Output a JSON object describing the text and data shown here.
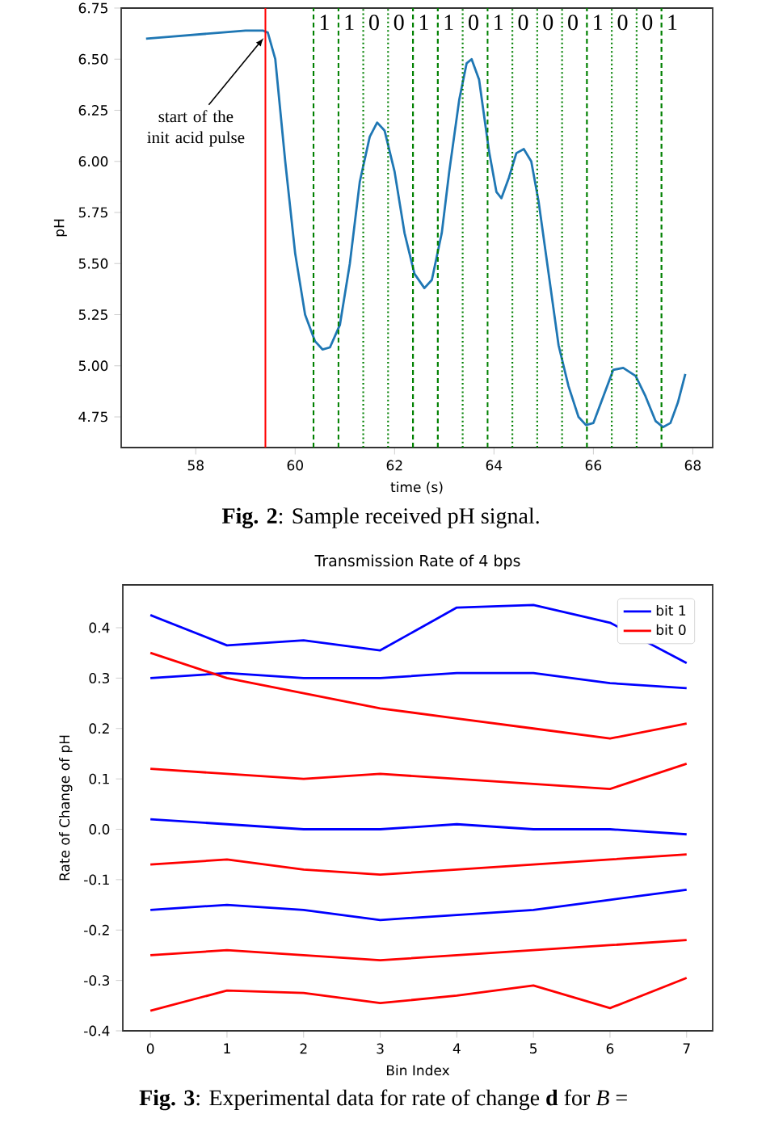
{
  "chart_data": [
    {
      "type": "line",
      "xlabel": "time (s)",
      "ylabel": "pH",
      "xlim": [
        56.5,
        68.4
      ],
      "ylim": [
        4.6,
        6.75
      ],
      "xticks": [
        58,
        60,
        62,
        64,
        66,
        68
      ],
      "yticks": [
        4.75,
        {
          "value": 5,
          "label": "5.00"
        },
        5.25,
        {
          "value": 5.5,
          "label": "5.50"
        },
        5.75,
        {
          "value": 6,
          "label": "6.00"
        },
        6.25,
        {
          "value": 6.5,
          "label": "6.50"
        },
        6.75
      ],
      "series": [
        {
          "color": "#1f77b4",
          "x": [
            57.0,
            57.5,
            58.0,
            58.5,
            59.0,
            59.35,
            59.45,
            59.6,
            59.8,
            60.0,
            60.2,
            60.4,
            60.55,
            60.7,
            60.9,
            61.1,
            61.3,
            61.5,
            61.65,
            61.8,
            62.0,
            62.2,
            62.4,
            62.6,
            62.75,
            62.95,
            63.1,
            63.3,
            63.45,
            63.55,
            63.7,
            63.9,
            64.05,
            64.15,
            64.3,
            64.45,
            64.6,
            64.75,
            64.9,
            65.1,
            65.3,
            65.5,
            65.7,
            65.85,
            66.0,
            66.2,
            66.4,
            66.6,
            66.85,
            67.05,
            67.25,
            67.4,
            67.55,
            67.7,
            67.85
          ],
          "values": [
            6.6,
            6.61,
            6.62,
            6.63,
            6.64,
            6.64,
            6.63,
            6.5,
            6.0,
            5.55,
            5.25,
            5.12,
            5.08,
            5.09,
            5.2,
            5.5,
            5.9,
            6.12,
            6.19,
            6.15,
            5.95,
            5.65,
            5.45,
            5.38,
            5.42,
            5.65,
            5.95,
            6.3,
            6.48,
            6.5,
            6.4,
            6.05,
            5.85,
            5.82,
            5.92,
            6.04,
            6.06,
            6.0,
            5.8,
            5.45,
            5.1,
            4.9,
            4.75,
            4.71,
            4.72,
            4.85,
            4.98,
            4.99,
            4.95,
            4.85,
            4.73,
            4.7,
            4.72,
            4.82,
            4.96
          ]
        }
      ],
      "ref_lines": [
        {
          "axis": "x",
          "value": 59.4,
          "color": "#ff0000",
          "line_style": "solid",
          "label": null
        },
        {
          "axis": "x",
          "value": 60.37,
          "color": "#008000",
          "line_style": "dashed"
        },
        {
          "axis": "x",
          "value": 60.87,
          "color": "#008000",
          "line_style": "dashed"
        },
        {
          "axis": "x",
          "value": 61.37,
          "color": "#008000",
          "line_style": "dotted"
        },
        {
          "axis": "x",
          "value": 61.87,
          "color": "#008000",
          "line_style": "dotted"
        },
        {
          "axis": "x",
          "value": 62.37,
          "color": "#008000",
          "line_style": "dashed"
        },
        {
          "axis": "x",
          "value": 62.87,
          "color": "#008000",
          "line_style": "dashed"
        },
        {
          "axis": "x",
          "value": 63.37,
          "color": "#008000",
          "line_style": "dotted"
        },
        {
          "axis": "x",
          "value": 63.87,
          "color": "#008000",
          "line_style": "dashed"
        },
        {
          "axis": "x",
          "value": 64.37,
          "color": "#008000",
          "line_style": "dotted"
        },
        {
          "axis": "x",
          "value": 64.87,
          "color": "#008000",
          "line_style": "dotted"
        },
        {
          "axis": "x",
          "value": 65.37,
          "color": "#008000",
          "line_style": "dotted"
        },
        {
          "axis": "x",
          "value": 65.87,
          "color": "#008000",
          "line_style": "dashed"
        },
        {
          "axis": "x",
          "value": 66.37,
          "color": "#008000",
          "line_style": "dotted"
        },
        {
          "axis": "x",
          "value": 66.87,
          "color": "#008000",
          "line_style": "dotted"
        },
        {
          "axis": "x",
          "value": 67.37,
          "color": "#008000",
          "line_style": "dashed"
        }
      ],
      "annotations": [
        {
          "text": "start of the init acid pulse",
          "x": 59.4,
          "y": 6.62
        },
        "1",
        "1",
        "0",
        "0",
        "1",
        "1",
        "0",
        "1",
        "0",
        "0",
        "0",
        "1",
        "0",
        "0",
        "1",
        "**Fig. 2**:  Sample received pH signal."
      ]
    },
    {
      "type": "line",
      "title": "Transmission Rate of 4 bps",
      "xlabel": "Bin Index",
      "ylabel": "Rate of Change of pH",
      "x": [
        0,
        1,
        2,
        3,
        4,
        5,
        6,
        7
      ],
      "xlim": [
        -0.36,
        7.34
      ],
      "ylim": [
        -0.4,
        0.485
      ],
      "xticks": [
        0,
        1,
        2,
        3,
        4,
        5,
        6,
        7
      ],
      "yticks": [
        -0.4,
        -0.3,
        -0.2,
        -0.1,
        {
          "value": 0,
          "label": "0.0"
        },
        0.1,
        0.2,
        0.3,
        0.4
      ],
      "legend": "top right",
      "series": [
        {
          "name": "bit 1",
          "color": "#0000ff",
          "values": [
            0.425,
            0.365,
            0.375,
            0.355,
            0.44,
            0.445,
            0.41,
            0.33
          ]
        },
        {
          "color": "#0000ff",
          "values": [
            0.3,
            0.31,
            0.3,
            0.3,
            0.31,
            0.31,
            0.29,
            0.28
          ]
        },
        {
          "color": "#0000ff",
          "values": [
            0.02,
            0.01,
            0.0,
            0.0,
            0.01,
            0.0,
            0.0,
            -0.01
          ]
        },
        {
          "color": "#0000ff",
          "values": [
            -0.16,
            -0.15,
            -0.16,
            -0.18,
            -0.17,
            -0.16,
            -0.14,
            -0.12
          ]
        },
        {
          "name": "bit 0",
          "color": "#ff0000",
          "values": [
            -0.36,
            -0.32,
            -0.325,
            -0.345,
            -0.33,
            -0.31,
            -0.355,
            -0.295
          ]
        },
        {
          "color": "#ff0000",
          "values": [
            0.35,
            0.3,
            0.27,
            0.24,
            0.22,
            0.2,
            0.18,
            0.21
          ]
        },
        {
          "color": "#ff0000",
          "values": [
            0.12,
            0.11,
            0.1,
            0.11,
            0.1,
            0.09,
            0.08,
            0.13
          ]
        },
        {
          "color": "#ff0000",
          "values": [
            -0.07,
            -0.06,
            -0.08,
            -0.09,
            -0.08,
            -0.07,
            -0.06,
            -0.05
          ]
        },
        {
          "color": "#ff0000",
          "values": [
            -0.25,
            -0.24,
            -0.25,
            -0.26,
            -0.25,
            -0.24,
            -0.23,
            -0.22
          ]
        }
      ],
      "annotations": [
        "**Fig. 3**:  Experimental data for rate of change **d** for *B* ="
      ]
    }
  ]
}
